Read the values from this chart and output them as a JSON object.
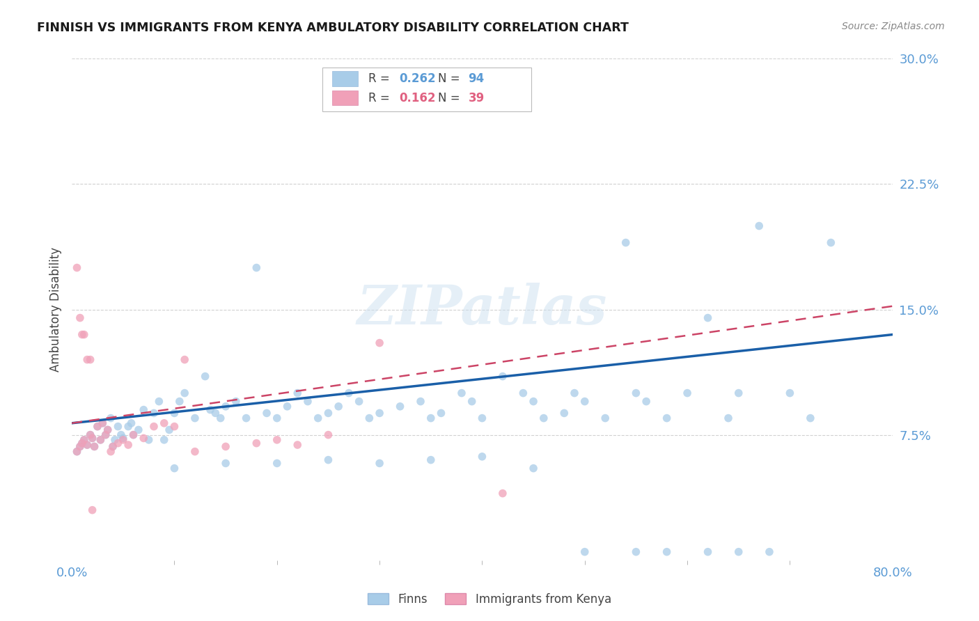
{
  "title": "FINNISH VS IMMIGRANTS FROM KENYA AMBULATORY DISABILITY CORRELATION CHART",
  "source": "Source: ZipAtlas.com",
  "ylabel": "Ambulatory Disability",
  "color_finns": "#a8cce8",
  "color_kenya": "#f0a0b8",
  "line_color_finns": "#1a5fa8",
  "line_color_kenya": "#cc4466",
  "R_finns": 0.262,
  "N_finns": 94,
  "R_kenya": 0.162,
  "N_kenya": 39,
  "legend_labels": [
    "Finns",
    "Immigrants from Kenya"
  ],
  "watermark": "ZIPatlas",
  "xlim": [
    0.0,
    0.8
  ],
  "ylim": [
    0.0,
    0.3
  ],
  "ytick_vals": [
    0.075,
    0.15,
    0.225,
    0.3
  ],
  "ytick_labels": [
    "7.5%",
    "15.0%",
    "22.5%",
    "30.0%"
  ],
  "xtick_vals": [
    0.0,
    0.8
  ],
  "xtick_labels": [
    "0.0%",
    "80.0%"
  ],
  "finns_x": [
    0.005,
    0.008,
    0.01,
    0.012,
    0.015,
    0.018,
    0.02,
    0.022,
    0.025,
    0.028,
    0.03,
    0.033,
    0.035,
    0.038,
    0.04,
    0.042,
    0.045,
    0.048,
    0.05,
    0.055,
    0.058,
    0.06,
    0.065,
    0.07,
    0.075,
    0.08,
    0.085,
    0.09,
    0.095,
    0.1,
    0.105,
    0.11,
    0.12,
    0.13,
    0.135,
    0.14,
    0.145,
    0.15,
    0.16,
    0.17,
    0.18,
    0.19,
    0.2,
    0.21,
    0.22,
    0.23,
    0.24,
    0.25,
    0.26,
    0.27,
    0.28,
    0.29,
    0.3,
    0.32,
    0.34,
    0.35,
    0.36,
    0.38,
    0.39,
    0.4,
    0.42,
    0.44,
    0.45,
    0.46,
    0.48,
    0.49,
    0.5,
    0.52,
    0.54,
    0.55,
    0.56,
    0.58,
    0.6,
    0.62,
    0.64,
    0.65,
    0.67,
    0.7,
    0.72,
    0.74,
    0.5,
    0.55,
    0.58,
    0.62,
    0.65,
    0.68,
    0.3,
    0.35,
    0.4,
    0.45,
    0.2,
    0.25,
    0.1,
    0.15
  ],
  "finns_y": [
    0.065,
    0.068,
    0.07,
    0.072,
    0.069,
    0.075,
    0.073,
    0.068,
    0.08,
    0.072,
    0.082,
    0.075,
    0.078,
    0.085,
    0.068,
    0.072,
    0.08,
    0.075,
    0.073,
    0.08,
    0.082,
    0.075,
    0.078,
    0.09,
    0.072,
    0.088,
    0.095,
    0.072,
    0.078,
    0.088,
    0.095,
    0.1,
    0.085,
    0.11,
    0.09,
    0.088,
    0.085,
    0.092,
    0.095,
    0.085,
    0.175,
    0.088,
    0.085,
    0.092,
    0.1,
    0.095,
    0.085,
    0.088,
    0.092,
    0.1,
    0.095,
    0.085,
    0.088,
    0.092,
    0.095,
    0.085,
    0.088,
    0.1,
    0.095,
    0.085,
    0.11,
    0.1,
    0.095,
    0.085,
    0.088,
    0.1,
    0.095,
    0.085,
    0.19,
    0.1,
    0.095,
    0.085,
    0.1,
    0.145,
    0.085,
    0.1,
    0.2,
    0.1,
    0.085,
    0.19,
    0.005,
    0.005,
    0.005,
    0.005,
    0.005,
    0.005,
    0.058,
    0.06,
    0.062,
    0.055,
    0.058,
    0.06,
    0.055,
    0.058
  ],
  "kenya_x": [
    0.005,
    0.008,
    0.01,
    0.012,
    0.015,
    0.018,
    0.02,
    0.022,
    0.025,
    0.028,
    0.03,
    0.033,
    0.035,
    0.038,
    0.04,
    0.045,
    0.05,
    0.055,
    0.06,
    0.07,
    0.08,
    0.09,
    0.1,
    0.11,
    0.12,
    0.15,
    0.18,
    0.2,
    0.22,
    0.25,
    0.005,
    0.008,
    0.01,
    0.012,
    0.015,
    0.018,
    0.02,
    0.3,
    0.42
  ],
  "kenya_y": [
    0.065,
    0.068,
    0.07,
    0.072,
    0.069,
    0.075,
    0.073,
    0.068,
    0.08,
    0.072,
    0.082,
    0.075,
    0.078,
    0.065,
    0.068,
    0.07,
    0.072,
    0.069,
    0.075,
    0.073,
    0.08,
    0.082,
    0.08,
    0.12,
    0.065,
    0.068,
    0.07,
    0.072,
    0.069,
    0.075,
    0.175,
    0.145,
    0.135,
    0.135,
    0.12,
    0.12,
    0.03,
    0.13,
    0.04
  ]
}
